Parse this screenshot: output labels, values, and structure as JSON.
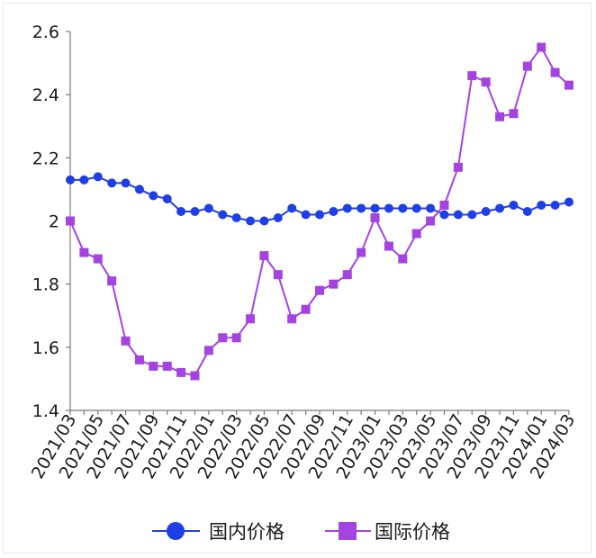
{
  "chart_data": {
    "type": "line",
    "title": "",
    "xlabel": "",
    "ylabel": "",
    "ylim": [
      1.4,
      2.6
    ],
    "yticks": [
      "1.4",
      "1.6",
      "1.8",
      "2",
      "2.2",
      "2.4",
      "2.6"
    ],
    "x": [
      "2021/03",
      "2021/04",
      "2021/05",
      "2021/06",
      "2021/07",
      "2021/08",
      "2021/09",
      "2021/10",
      "2021/11",
      "2021/12",
      "2022/01",
      "2022/02",
      "2022/03",
      "2022/04",
      "2022/05",
      "2022/06",
      "2022/07",
      "2022/08",
      "2022/09",
      "2022/10",
      "2022/11",
      "2022/12",
      "2023/01",
      "2023/02",
      "2023/03",
      "2023/04",
      "2023/05",
      "2023/06",
      "2023/07",
      "2023/08",
      "2023/09",
      "2023/10",
      "2023/11",
      "2023/12",
      "2024/01",
      "2024/02",
      "2024/03"
    ],
    "xtick_labels": [
      "2021/03",
      "2021/05",
      "2021/07",
      "2021/09",
      "2021/11",
      "2022/01",
      "2022/03",
      "2022/05",
      "2022/07",
      "2022/09",
      "2022/11",
      "2023/01",
      "2023/03",
      "2023/05",
      "2023/07",
      "2023/09",
      "2023/11",
      "2024/01",
      "2024/03"
    ],
    "grid": false,
    "legend_position": "bottom",
    "series": [
      {
        "name": "国内价格",
        "color": "#1f3fe6",
        "marker": "circle",
        "values": [
          2.13,
          2.13,
          2.14,
          2.12,
          2.12,
          2.1,
          2.08,
          2.07,
          2.03,
          2.03,
          2.04,
          2.02,
          2.01,
          2.0,
          2.0,
          2.01,
          2.04,
          2.02,
          2.02,
          2.03,
          2.04,
          2.04,
          2.04,
          2.04,
          2.04,
          2.04,
          2.04,
          2.02,
          2.02,
          2.02,
          2.03,
          2.04,
          2.05,
          2.03,
          2.05,
          2.05,
          2.06
        ]
      },
      {
        "name": "国际价格",
        "color": "#a543e0",
        "marker": "square",
        "values": [
          2.0,
          1.9,
          1.88,
          1.81,
          1.62,
          1.56,
          1.54,
          1.54,
          1.52,
          1.51,
          1.59,
          1.63,
          1.63,
          1.69,
          1.89,
          1.83,
          1.69,
          1.72,
          1.78,
          1.8,
          1.83,
          1.9,
          2.01,
          1.92,
          1.88,
          1.96,
          2.0,
          2.05,
          2.17,
          2.46,
          2.44,
          2.33,
          2.34,
          2.49,
          2.55,
          2.47,
          2.43
        ]
      }
    ]
  }
}
